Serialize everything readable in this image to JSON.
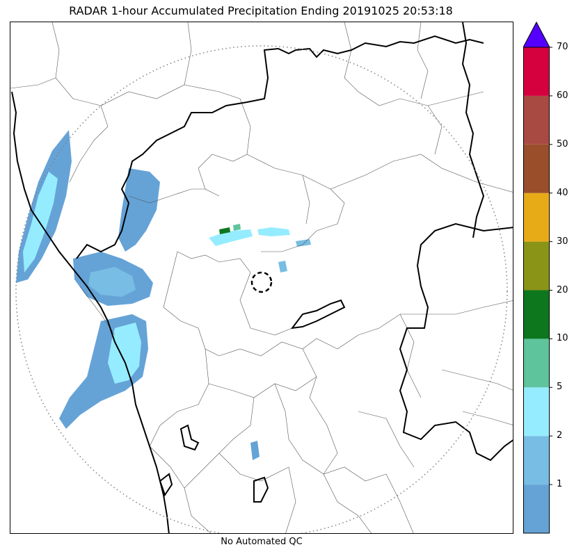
{
  "title": "RADAR 1-hour Accumulated Precipitation Ending 20191025 20:53:18",
  "caption": "No Automated QC",
  "map": {
    "radar_range_ring": "dotted circle",
    "radar_site_marker": "dashed circle"
  },
  "colorbar": {
    "extend": "max",
    "overflow_color": "#5500ff",
    "bins": [
      {
        "from": 0,
        "to": 1,
        "color": "#65a3d7"
      },
      {
        "from": 1,
        "to": 2,
        "color": "#78bde3"
      },
      {
        "from": 2,
        "to": 5,
        "color": "#96ecff"
      },
      {
        "from": 5,
        "to": 10,
        "color": "#5ec49c"
      },
      {
        "from": 10,
        "to": 20,
        "color": "#0d771e"
      },
      {
        "from": 20,
        "to": 30,
        "color": "#8a9417"
      },
      {
        "from": 30,
        "to": 40,
        "color": "#e8ab18"
      },
      {
        "from": 40,
        "to": 50,
        "color": "#9a4e2a"
      },
      {
        "from": 50,
        "to": 60,
        "color": "#a84a42"
      },
      {
        "from": 60,
        "to": 70,
        "color": "#d5003e"
      }
    ],
    "tick_labels": [
      "1",
      "2",
      "5",
      "10",
      "20",
      "30",
      "40",
      "50",
      "60",
      "70"
    ]
  }
}
